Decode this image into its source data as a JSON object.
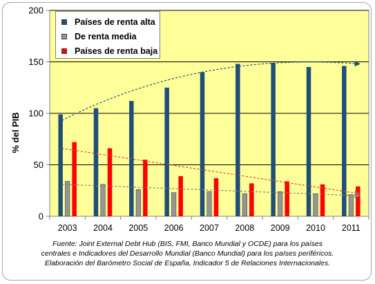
{
  "chart_data": {
    "type": "bar",
    "categories": [
      "2003",
      "2004",
      "2005",
      "2006",
      "2007",
      "2008",
      "2009",
      "2010",
      "2011"
    ],
    "series": [
      {
        "name": "Países de renta alta",
        "color": "#1f4e79",
        "values": [
          99,
          105,
          112,
          125,
          140,
          148,
          149,
          145,
          146
        ]
      },
      {
        "name": "De renta media",
        "color": "#969696",
        "values": [
          34,
          31,
          26,
          23,
          24,
          22,
          24,
          22,
          21
        ]
      },
      {
        "name": "Países de renta baja",
        "color": "#ff0000",
        "values": [
          72,
          66,
          55,
          39,
          37,
          32,
          34,
          31,
          29
        ]
      }
    ],
    "trendlines": [
      {
        "series": "Países de renta alta",
        "color": "#1f4e79",
        "points": [
          [
            0,
            93
          ],
          [
            8,
            148
          ]
        ],
        "shape": "curve",
        "arrow": true
      },
      {
        "series": "Países de renta baja",
        "color": "#e04040",
        "points": [
          [
            0,
            66
          ],
          [
            8,
            22
          ]
        ],
        "shape": "line",
        "arrow": true
      },
      {
        "series": "De renta media",
        "color": "#808080",
        "points": [
          [
            0,
            31
          ],
          [
            8,
            20
          ]
        ],
        "shape": "line",
        "arrow": true
      }
    ],
    "ylabel": "% del PIB",
    "xlabel": "",
    "ylim": [
      0,
      200
    ],
    "yticks": [
      0,
      50,
      100,
      150,
      200
    ],
    "grid": true,
    "legend": "top-left",
    "plot_background": "#ffff99"
  },
  "caption": [
    "Fuente: Joint External Debt Hub (BIS, FMI, Banco Mundial y OCDE) para los países",
    "centrales e Indicadores del Desarrollo Mundial  (Banco Mundial) para los países periféricos.",
    "Elaboración del Barómetro Social de España, Indicador 5 de Relaciones Internacionales."
  ]
}
